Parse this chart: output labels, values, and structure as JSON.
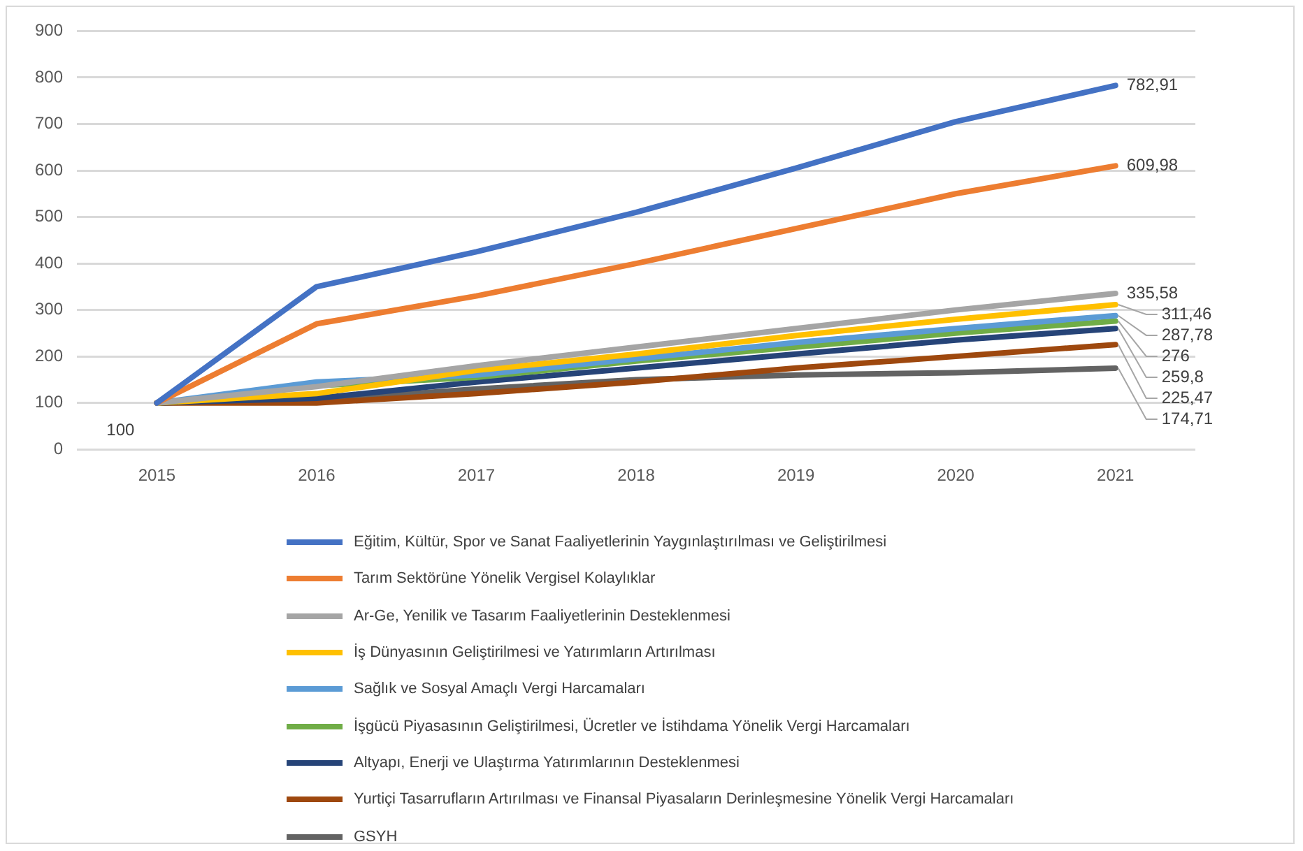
{
  "chart_data": {
    "type": "line",
    "categories": [
      "2015",
      "2016",
      "2017",
      "2018",
      "2019",
      "2020",
      "2021"
    ],
    "ylim": [
      0,
      900
    ],
    "yticks": [
      0,
      100,
      200,
      300,
      400,
      500,
      600,
      700,
      800,
      900
    ],
    "grid": "y",
    "legend": "bottom",
    "marker": "none",
    "series": [
      {
        "name": "Eğitim, Kültür, Spor ve Sanat Faaliyetlerinin Yaygınlaştırılması ve Geliştirilmesi",
        "color": "#4472c4",
        "values": [
          100,
          350,
          425,
          510,
          605,
          705,
          782.91
        ],
        "value_labels": [
          null,
          null,
          null,
          null,
          null,
          null,
          "782,91"
        ]
      },
      {
        "name": "Tarım Sektörüne Yönelik Vergisel Kolaylıklar",
        "color": "#ed7d31",
        "values": [
          100,
          270,
          330,
          400,
          475,
          550,
          609.98
        ],
        "value_labels": [
          null,
          null,
          null,
          null,
          null,
          null,
          "609,98"
        ]
      },
      {
        "name": "Ar-Ge, Yenilik ve Tasarım Faaliyetlerinin Desteklenmesi",
        "color": "#a5a5a5",
        "values": [
          100,
          135,
          180,
          220,
          260,
          300,
          335.58
        ],
        "value_labels": [
          null,
          null,
          null,
          null,
          null,
          null,
          "335,58"
        ]
      },
      {
        "name": "İş Dünyasının Geliştirilmesi ve Yatırımların Artırılması",
        "color": "#ffc000",
        "values": [
          100,
          120,
          170,
          205,
          245,
          280,
          311.46
        ],
        "value_labels": [
          null,
          null,
          null,
          null,
          null,
          null,
          "311,46"
        ]
      },
      {
        "name": "Sağlık ve Sosyal Amaçlı Vergi Harcamaları",
        "color": "#5b9bd5",
        "values": [
          100,
          145,
          160,
          195,
          230,
          260,
          287.78
        ],
        "value_labels": [
          null,
          null,
          null,
          null,
          null,
          null,
          "287,78"
        ]
      },
      {
        "name": "İşgücü Piyasasının Geliştirilmesi, Ücretler ve İstihdama Yönelik Vergi Harcamaları",
        "color": "#70ad47",
        "values": [
          100,
          137,
          155,
          190,
          220,
          250,
          276
        ],
        "value_labels": [
          null,
          null,
          null,
          null,
          null,
          null,
          "276"
        ]
      },
      {
        "name": "Altyapı, Enerji ve Ulaştırma Yatırımlarının Desteklenmesi",
        "color": "#264478",
        "values": [
          100,
          110,
          145,
          175,
          205,
          235,
          259.8
        ],
        "value_labels": [
          null,
          null,
          null,
          null,
          null,
          null,
          "259,8"
        ]
      },
      {
        "name": "Yurtiçi Tasarrufların Artırılması ve Finansal Piyasaların Derinleşmesine Yönelik Vergi Harcamaları",
        "color": "#9e480e",
        "values": [
          100,
          100,
          120,
          145,
          175,
          200,
          225.47
        ],
        "value_labels": [
          null,
          null,
          null,
          null,
          null,
          null,
          "225,47"
        ]
      },
      {
        "name": "GSYH",
        "color": "#636363",
        "values": [
          100,
          105,
          130,
          150,
          160,
          165,
          174.71
        ],
        "value_labels": [
          "100",
          null,
          null,
          null,
          null,
          null,
          "174,71"
        ]
      }
    ]
  }
}
